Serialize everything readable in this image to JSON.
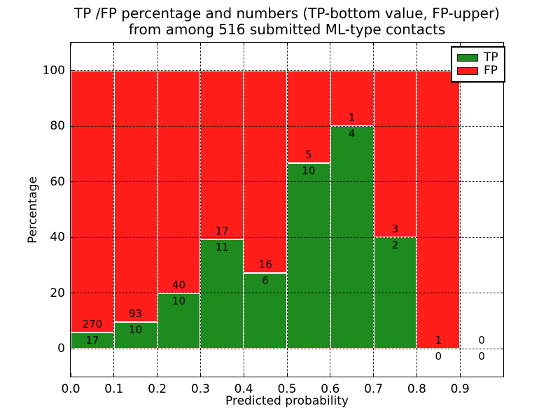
{
  "title": {
    "line1": "TP /FP percentage and numbers (TP-bottom value, FP-upper)",
    "line2": "from among 516 submitted ML-type contacts"
  },
  "axes": {
    "xlabel": "Predicted probability",
    "ylabel": "Percentage"
  },
  "legend": {
    "items": [
      {
        "label": "TP",
        "color": "#1e8b1e"
      },
      {
        "label": "FP",
        "color": "#ff1e19"
      }
    ]
  },
  "chart_data": {
    "type": "bar",
    "stacked": true,
    "title": "TP /FP percentage and numbers (TP-bottom value, FP-upper) from among 516 submitted ML-type contacts",
    "xlabel": "Predicted probability",
    "ylabel": "Percentage",
    "xlim": [
      0.0,
      1.0
    ],
    "ylim": [
      -10,
      110
    ],
    "grid": true,
    "legend_position": "upper right",
    "total_contacts": 516,
    "bin_width": 0.1,
    "colors": {
      "tp": "#1e8b1e",
      "fp": "#ff1e19",
      "bar_edge": "#ffffff"
    },
    "x_ticks": {
      "values": [
        0.0,
        0.1,
        0.2,
        0.3,
        0.4,
        0.5,
        0.6,
        0.7,
        0.8,
        0.9
      ],
      "labels": [
        "0.0",
        "0.1",
        "0.2",
        "0.3",
        "0.4",
        "0.5",
        "0.6",
        "0.7",
        "0.8",
        "0.9"
      ]
    },
    "y_ticks": {
      "values": [
        0,
        20,
        40,
        60,
        80,
        100
      ],
      "labels": [
        "0",
        "20",
        "40",
        "60",
        "80",
        "100"
      ]
    },
    "series": [
      {
        "name": "TP",
        "counts": [
          17,
          10,
          10,
          11,
          6,
          10,
          4,
          2,
          0,
          0
        ]
      },
      {
        "name": "FP",
        "counts": [
          270,
          93,
          40,
          17,
          16,
          5,
          1,
          3,
          1,
          0
        ]
      }
    ],
    "bins": [
      {
        "range": [
          0.0,
          0.1
        ],
        "tp": 17,
        "fp": 270,
        "tp_pct": 5.9,
        "fp_pct": 94.1
      },
      {
        "range": [
          0.1,
          0.2
        ],
        "tp": 10,
        "fp": 93,
        "tp_pct": 9.7,
        "fp_pct": 90.3
      },
      {
        "range": [
          0.2,
          0.3
        ],
        "tp": 10,
        "fp": 40,
        "tp_pct": 20.0,
        "fp_pct": 80.0
      },
      {
        "range": [
          0.3,
          0.4
        ],
        "tp": 11,
        "fp": 17,
        "tp_pct": 39.3,
        "fp_pct": 60.7
      },
      {
        "range": [
          0.4,
          0.5
        ],
        "tp": 6,
        "fp": 16,
        "tp_pct": 27.3,
        "fp_pct": 72.7
      },
      {
        "range": [
          0.5,
          0.6
        ],
        "tp": 10,
        "fp": 5,
        "tp_pct": 66.7,
        "fp_pct": 33.3
      },
      {
        "range": [
          0.6,
          0.7
        ],
        "tp": 4,
        "fp": 1,
        "tp_pct": 80.0,
        "fp_pct": 20.0
      },
      {
        "range": [
          0.7,
          0.8
        ],
        "tp": 2,
        "fp": 3,
        "tp_pct": 40.0,
        "fp_pct": 60.0
      },
      {
        "range": [
          0.8,
          0.9
        ],
        "tp": 0,
        "fp": 1,
        "tp_pct": 0.0,
        "fp_pct": 100.0
      },
      {
        "range": [
          0.9,
          1.0
        ],
        "tp": 0,
        "fp": 0,
        "tp_pct": 0.0,
        "fp_pct": 0.0
      }
    ]
  }
}
